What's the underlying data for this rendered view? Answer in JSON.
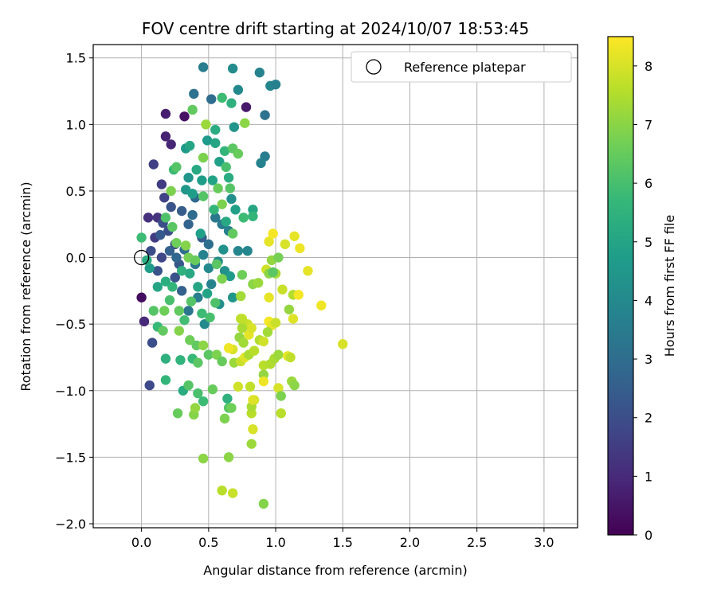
{
  "chart_data": {
    "type": "scatter",
    "title": "FOV centre drift starting at 2024/10/07 18:53:45",
    "xlabel": "Angular distance from reference (arcmin)",
    "ylabel": "Rotation from reference (arcmin)",
    "xlim": [
      -0.36,
      3.25
    ],
    "ylim": [
      -2.03,
      1.6
    ],
    "xticks": [
      0.0,
      0.5,
      1.0,
      1.5,
      2.0,
      2.5,
      3.0
    ],
    "xtick_labels": [
      "0.0",
      "0.5",
      "1.0",
      "1.5",
      "2.0",
      "2.5",
      "3.0"
    ],
    "yticks": [
      -2.0,
      -1.5,
      -1.0,
      -0.5,
      0.0,
      0.5,
      1.0,
      1.5
    ],
    "ytick_labels": [
      "−2.0",
      "−1.5",
      "−1.0",
      "−0.5",
      "0.0",
      "0.5",
      "1.0",
      "1.5"
    ],
    "grid": true,
    "legend": {
      "placement": "top-right",
      "label": "Reference platepar"
    },
    "reference_point": {
      "x": 0.0,
      "y": 0.0
    },
    "colorbar": {
      "label": "Hours from first FF file",
      "range": [
        0,
        8.5
      ],
      "ticks": [
        0,
        1,
        2,
        3,
        4,
        5,
        6,
        7,
        8
      ],
      "tick_labels": [
        "0",
        "1",
        "2",
        "3",
        "4",
        "5",
        "6",
        "7",
        "8"
      ],
      "colormap": "viridis"
    },
    "points": [
      [
        0.0,
        -0.3,
        0.3
      ],
      [
        0.02,
        -0.48,
        1.0
      ],
      [
        0.05,
        0.3,
        1.2
      ],
      [
        0.07,
        0.05,
        2.0
      ],
      [
        0.1,
        0.15,
        1.5
      ],
      [
        0.12,
        -0.1,
        2.2
      ],
      [
        0.15,
        0.0,
        1.8
      ],
      [
        0.18,
        1.08,
        0.7
      ],
      [
        0.18,
        0.91,
        0.8
      ],
      [
        0.22,
        0.85,
        0.9
      ],
      [
        0.32,
        1.06,
        0.4
      ],
      [
        0.09,
        0.7,
        1.6
      ],
      [
        0.15,
        0.55,
        1.5
      ],
      [
        0.17,
        0.45,
        1.7
      ],
      [
        0.12,
        0.3,
        1.3
      ],
      [
        0.2,
        0.2,
        2.0
      ],
      [
        0.25,
        0.1,
        1.8
      ],
      [
        0.3,
        0.35,
        2.5
      ],
      [
        0.35,
        0.25,
        2.7
      ],
      [
        0.38,
        0.32,
        3.0
      ],
      [
        0.4,
        0.45,
        2.9
      ],
      [
        0.45,
        0.15,
        2.5
      ],
      [
        0.5,
        0.1,
        3.1
      ],
      [
        0.55,
        0.3,
        3.4
      ],
      [
        0.6,
        0.25,
        3.5
      ],
      [
        0.65,
        0.2,
        3.7
      ],
      [
        0.72,
        0.05,
        3.9
      ],
      [
        0.28,
        -0.05,
        2.3
      ],
      [
        0.25,
        -0.15,
        2.1
      ],
      [
        0.3,
        -0.25,
        2.6
      ],
      [
        0.35,
        -0.4,
        3.3
      ],
      [
        0.42,
        -0.3,
        3.6
      ],
      [
        0.47,
        -0.5,
        4.0
      ],
      [
        0.52,
        -0.2,
        3.8
      ],
      [
        0.58,
        -0.35,
        4.2
      ],
      [
        0.62,
        -0.1,
        4.3
      ],
      [
        0.68,
        -0.3,
        4.5
      ],
      [
        0.08,
        -0.64,
        2.0
      ],
      [
        0.06,
        -0.96,
        1.9
      ],
      [
        0.46,
        1.43,
        3.6
      ],
      [
        0.68,
        1.42,
        4.1
      ],
      [
        0.88,
        1.39,
        3.8
      ],
      [
        0.96,
        1.29,
        3.9
      ],
      [
        1.0,
        1.3,
        3.7
      ],
      [
        0.72,
        1.26,
        4.0
      ],
      [
        0.78,
        1.13,
        0.6
      ],
      [
        0.92,
        1.07,
        3.2
      ],
      [
        0.39,
        1.23,
        3.2
      ],
      [
        0.52,
        1.19,
        3.0
      ],
      [
        0.6,
        1.2,
        5.8
      ],
      [
        0.67,
        1.16,
        5.4
      ],
      [
        0.38,
        1.11,
        6.4
      ],
      [
        0.69,
        0.98,
        4.4
      ],
      [
        0.55,
        0.96,
        5.2
      ],
      [
        0.48,
        1.0,
        7.2
      ],
      [
        0.77,
        1.01,
        7.0
      ],
      [
        0.49,
        0.88,
        4.6
      ],
      [
        0.55,
        0.86,
        5.0
      ],
      [
        0.62,
        0.8,
        5.6
      ],
      [
        0.68,
        0.82,
        6.3
      ],
      [
        0.72,
        0.78,
        6.5
      ],
      [
        0.92,
        0.76,
        3.6
      ],
      [
        0.89,
        0.71,
        3.8
      ],
      [
        0.33,
        0.82,
        4.6
      ],
      [
        0.36,
        0.84,
        5.0
      ],
      [
        0.46,
        0.75,
        6.8
      ],
      [
        0.58,
        0.72,
        4.8
      ],
      [
        0.63,
        0.68,
        6.0
      ],
      [
        0.41,
        0.66,
        5.1
      ],
      [
        0.24,
        0.66,
        5.8
      ],
      [
        0.26,
        0.68,
        6.2
      ],
      [
        0.35,
        0.6,
        4.4
      ],
      [
        0.45,
        0.58,
        4.7
      ],
      [
        0.53,
        0.58,
        4.9
      ],
      [
        0.65,
        0.6,
        5.2
      ],
      [
        0.57,
        0.52,
        6.5
      ],
      [
        0.66,
        0.52,
        6.2
      ],
      [
        0.33,
        0.51,
        4.5
      ],
      [
        0.38,
        0.48,
        4.7
      ],
      [
        0.22,
        0.5,
        6.8
      ],
      [
        0.67,
        0.44,
        4.2
      ],
      [
        0.46,
        0.46,
        6.2
      ],
      [
        0.6,
        0.4,
        6.8
      ],
      [
        0.54,
        0.36,
        5.6
      ],
      [
        0.7,
        0.36,
        4.8
      ],
      [
        0.83,
        0.36,
        5.0
      ],
      [
        0.83,
        0.31,
        5.6
      ],
      [
        0.76,
        0.3,
        5.8
      ],
      [
        0.63,
        0.27,
        5.1
      ],
      [
        0.44,
        0.18,
        4.8
      ],
      [
        0.68,
        0.18,
        6.4
      ],
      [
        0.22,
        0.38,
        2.2
      ],
      [
        0.16,
        0.26,
        2.0
      ],
      [
        0.14,
        0.17,
        2.4
      ],
      [
        0.21,
        0.05,
        2.6
      ],
      [
        0.26,
        0.0,
        2.8
      ],
      [
        0.32,
        0.06,
        3.0
      ],
      [
        0.4,
        -0.05,
        3.4
      ],
      [
        0.46,
        0.02,
        3.8
      ],
      [
        0.5,
        -0.08,
        4.0
      ],
      [
        0.57,
        -0.03,
        4.1
      ],
      [
        0.61,
        0.06,
        4.3
      ],
      [
        0.79,
        0.05,
        3.9
      ],
      [
        0.66,
        -0.14,
        4.6
      ],
      [
        0.49,
        -0.27,
        4.9
      ],
      [
        0.42,
        -0.22,
        5.0
      ],
      [
        0.36,
        -0.12,
        5.1
      ],
      [
        0.3,
        -0.1,
        5.4
      ],
      [
        0.23,
        -0.22,
        5.6
      ],
      [
        0.18,
        -0.18,
        5.3
      ],
      [
        0.12,
        -0.22,
        5.0
      ],
      [
        0.06,
        -0.08,
        4.7
      ],
      [
        0.04,
        -0.02,
        5.2
      ],
      [
        0.0,
        0.15,
        5.8
      ],
      [
        0.18,
        0.3,
        6.1
      ],
      [
        0.23,
        0.23,
        6.3
      ],
      [
        0.26,
        0.11,
        6.6
      ],
      [
        0.33,
        0.09,
        6.9
      ],
      [
        0.35,
        0.0,
        6.7
      ],
      [
        0.4,
        -0.02,
        6.5
      ],
      [
        0.56,
        -0.05,
        6.3
      ],
      [
        0.6,
        -0.16,
        6.8
      ],
      [
        0.55,
        -0.34,
        6.1
      ],
      [
        0.51,
        -0.45,
        6.0
      ],
      [
        0.45,
        -0.42,
        5.8
      ],
      [
        0.37,
        -0.33,
        6.2
      ],
      [
        0.32,
        -0.47,
        5.9
      ],
      [
        0.28,
        -0.4,
        6.4
      ],
      [
        0.21,
        -0.32,
        6.0
      ],
      [
        0.17,
        -0.4,
        6.6
      ],
      [
        0.12,
        -0.52,
        5.7
      ],
      [
        0.09,
        -0.4,
        6.2
      ],
      [
        0.16,
        -0.55,
        6.4
      ],
      [
        0.28,
        -0.55,
        6.9
      ],
      [
        0.36,
        -0.62,
        6.6
      ],
      [
        0.41,
        -0.66,
        6.4
      ],
      [
        0.46,
        -0.66,
        7.0
      ],
      [
        0.5,
        -0.73,
        6.3
      ],
      [
        0.56,
        -0.73,
        6.8
      ],
      [
        0.6,
        -0.78,
        6.5
      ],
      [
        0.38,
        -0.76,
        5.7
      ],
      [
        0.42,
        -0.79,
        6.3
      ],
      [
        0.29,
        -0.77,
        5.5
      ],
      [
        0.18,
        -0.76,
        5.4
      ],
      [
        0.18,
        -0.92,
        5.6
      ],
      [
        0.31,
        -1.0,
        5.2
      ],
      [
        0.35,
        -0.96,
        6.2
      ],
      [
        0.42,
        -1.02,
        6.0
      ],
      [
        0.46,
        -1.08,
        5.8
      ],
      [
        0.53,
        -0.99,
        6.5
      ],
      [
        0.27,
        -1.17,
        6.5
      ],
      [
        0.39,
        -1.18,
        6.9
      ],
      [
        0.4,
        -1.13,
        7.1
      ],
      [
        0.64,
        -1.06,
        5.4
      ],
      [
        0.65,
        -1.13,
        6.2
      ],
      [
        0.67,
        -1.13,
        6.6
      ],
      [
        0.62,
        -1.21,
        6.8
      ],
      [
        0.46,
        -1.51,
        7.0
      ],
      [
        0.65,
        -1.5,
        7.0
      ],
      [
        0.6,
        -1.75,
        7.6
      ],
      [
        0.68,
        -1.77,
        7.8
      ],
      [
        0.91,
        -1.85,
        6.9
      ],
      [
        0.82,
        -1.4,
        7.2
      ],
      [
        0.83,
        -1.29,
        8.0
      ],
      [
        0.82,
        -1.17,
        7.6
      ],
      [
        0.84,
        -1.07,
        7.9
      ],
      [
        0.82,
        -1.12,
        7.4
      ],
      [
        0.81,
        -0.97,
        7.7
      ],
      [
        0.72,
        -0.97,
        7.9
      ],
      [
        0.69,
        -0.79,
        7.2
      ],
      [
        0.74,
        -0.78,
        7.8
      ],
      [
        0.77,
        -0.75,
        8.1
      ],
      [
        0.8,
        -0.73,
        7.4
      ],
      [
        0.84,
        -0.7,
        7.6
      ],
      [
        0.68,
        -0.69,
        8.0
      ],
      [
        0.65,
        -0.68,
        8.3
      ],
      [
        0.73,
        -0.6,
        7.1
      ],
      [
        0.76,
        -0.64,
        7.3
      ],
      [
        0.8,
        -0.58,
        8.2
      ],
      [
        0.74,
        -0.46,
        7.6
      ],
      [
        0.79,
        -0.5,
        7.8
      ],
      [
        0.82,
        -0.53,
        8.0
      ],
      [
        0.75,
        -0.53,
        7.4
      ],
      [
        0.88,
        -0.62,
        7.5
      ],
      [
        0.91,
        -0.63,
        7.9
      ],
      [
        0.95,
        -0.48,
        8.4
      ],
      [
        0.97,
        -0.51,
        8.2
      ],
      [
        1.0,
        -0.49,
        7.8
      ],
      [
        0.94,
        -0.56,
        7.3
      ],
      [
        0.91,
        -0.81,
        7.6
      ],
      [
        0.91,
        -0.88,
        7.1
      ],
      [
        0.96,
        -0.8,
        7.5
      ],
      [
        0.99,
        -0.76,
        7.4
      ],
      [
        1.02,
        -0.73,
        7.2
      ],
      [
        1.09,
        -0.74,
        8.2
      ],
      [
        1.11,
        -0.75,
        7.7
      ],
      [
        1.02,
        -0.98,
        8.0
      ],
      [
        1.04,
        -1.04,
        6.8
      ],
      [
        1.12,
        -0.93,
        7.2
      ],
      [
        1.14,
        -0.96,
        7.0
      ],
      [
        1.04,
        -1.17,
        7.6
      ],
      [
        0.91,
        -0.93,
        8.3
      ],
      [
        0.83,
        -1.07,
        8.1
      ],
      [
        0.95,
        -0.3,
        8.2
      ],
      [
        1.05,
        -0.24,
        7.8
      ],
      [
        1.13,
        -0.28,
        7.5
      ],
      [
        1.17,
        -0.28,
        8.4
      ],
      [
        1.1,
        -0.39,
        7.1
      ],
      [
        1.13,
        -0.46,
        8.1
      ],
      [
        1.34,
        -0.36,
        8.3
      ],
      [
        1.24,
        -0.1,
        8.2
      ],
      [
        1.5,
        -0.65,
        8.0
      ],
      [
        1.0,
        -0.12,
        7.4
      ],
      [
        0.97,
        -0.02,
        7.1
      ],
      [
        1.07,
        0.1,
        8.0
      ],
      [
        1.14,
        0.16,
        8.2
      ],
      [
        1.18,
        0.07,
        8.3
      ],
      [
        0.93,
        -0.09,
        7.9
      ],
      [
        0.83,
        -0.2,
        7.0
      ],
      [
        0.75,
        -0.13,
        6.6
      ],
      [
        0.74,
        -0.29,
        7.3
      ],
      [
        0.87,
        -0.19,
        7.2
      ],
      [
        0.95,
        0.12,
        8.2
      ],
      [
        0.98,
        0.18,
        8.4
      ],
      [
        1.02,
        0.0,
        6.7
      ],
      [
        0.95,
        -0.12,
        7.0
      ],
      [
        0.75,
        -0.46,
        7.7
      ],
      [
        0.98,
        -0.11,
        6.3
      ]
    ]
  }
}
